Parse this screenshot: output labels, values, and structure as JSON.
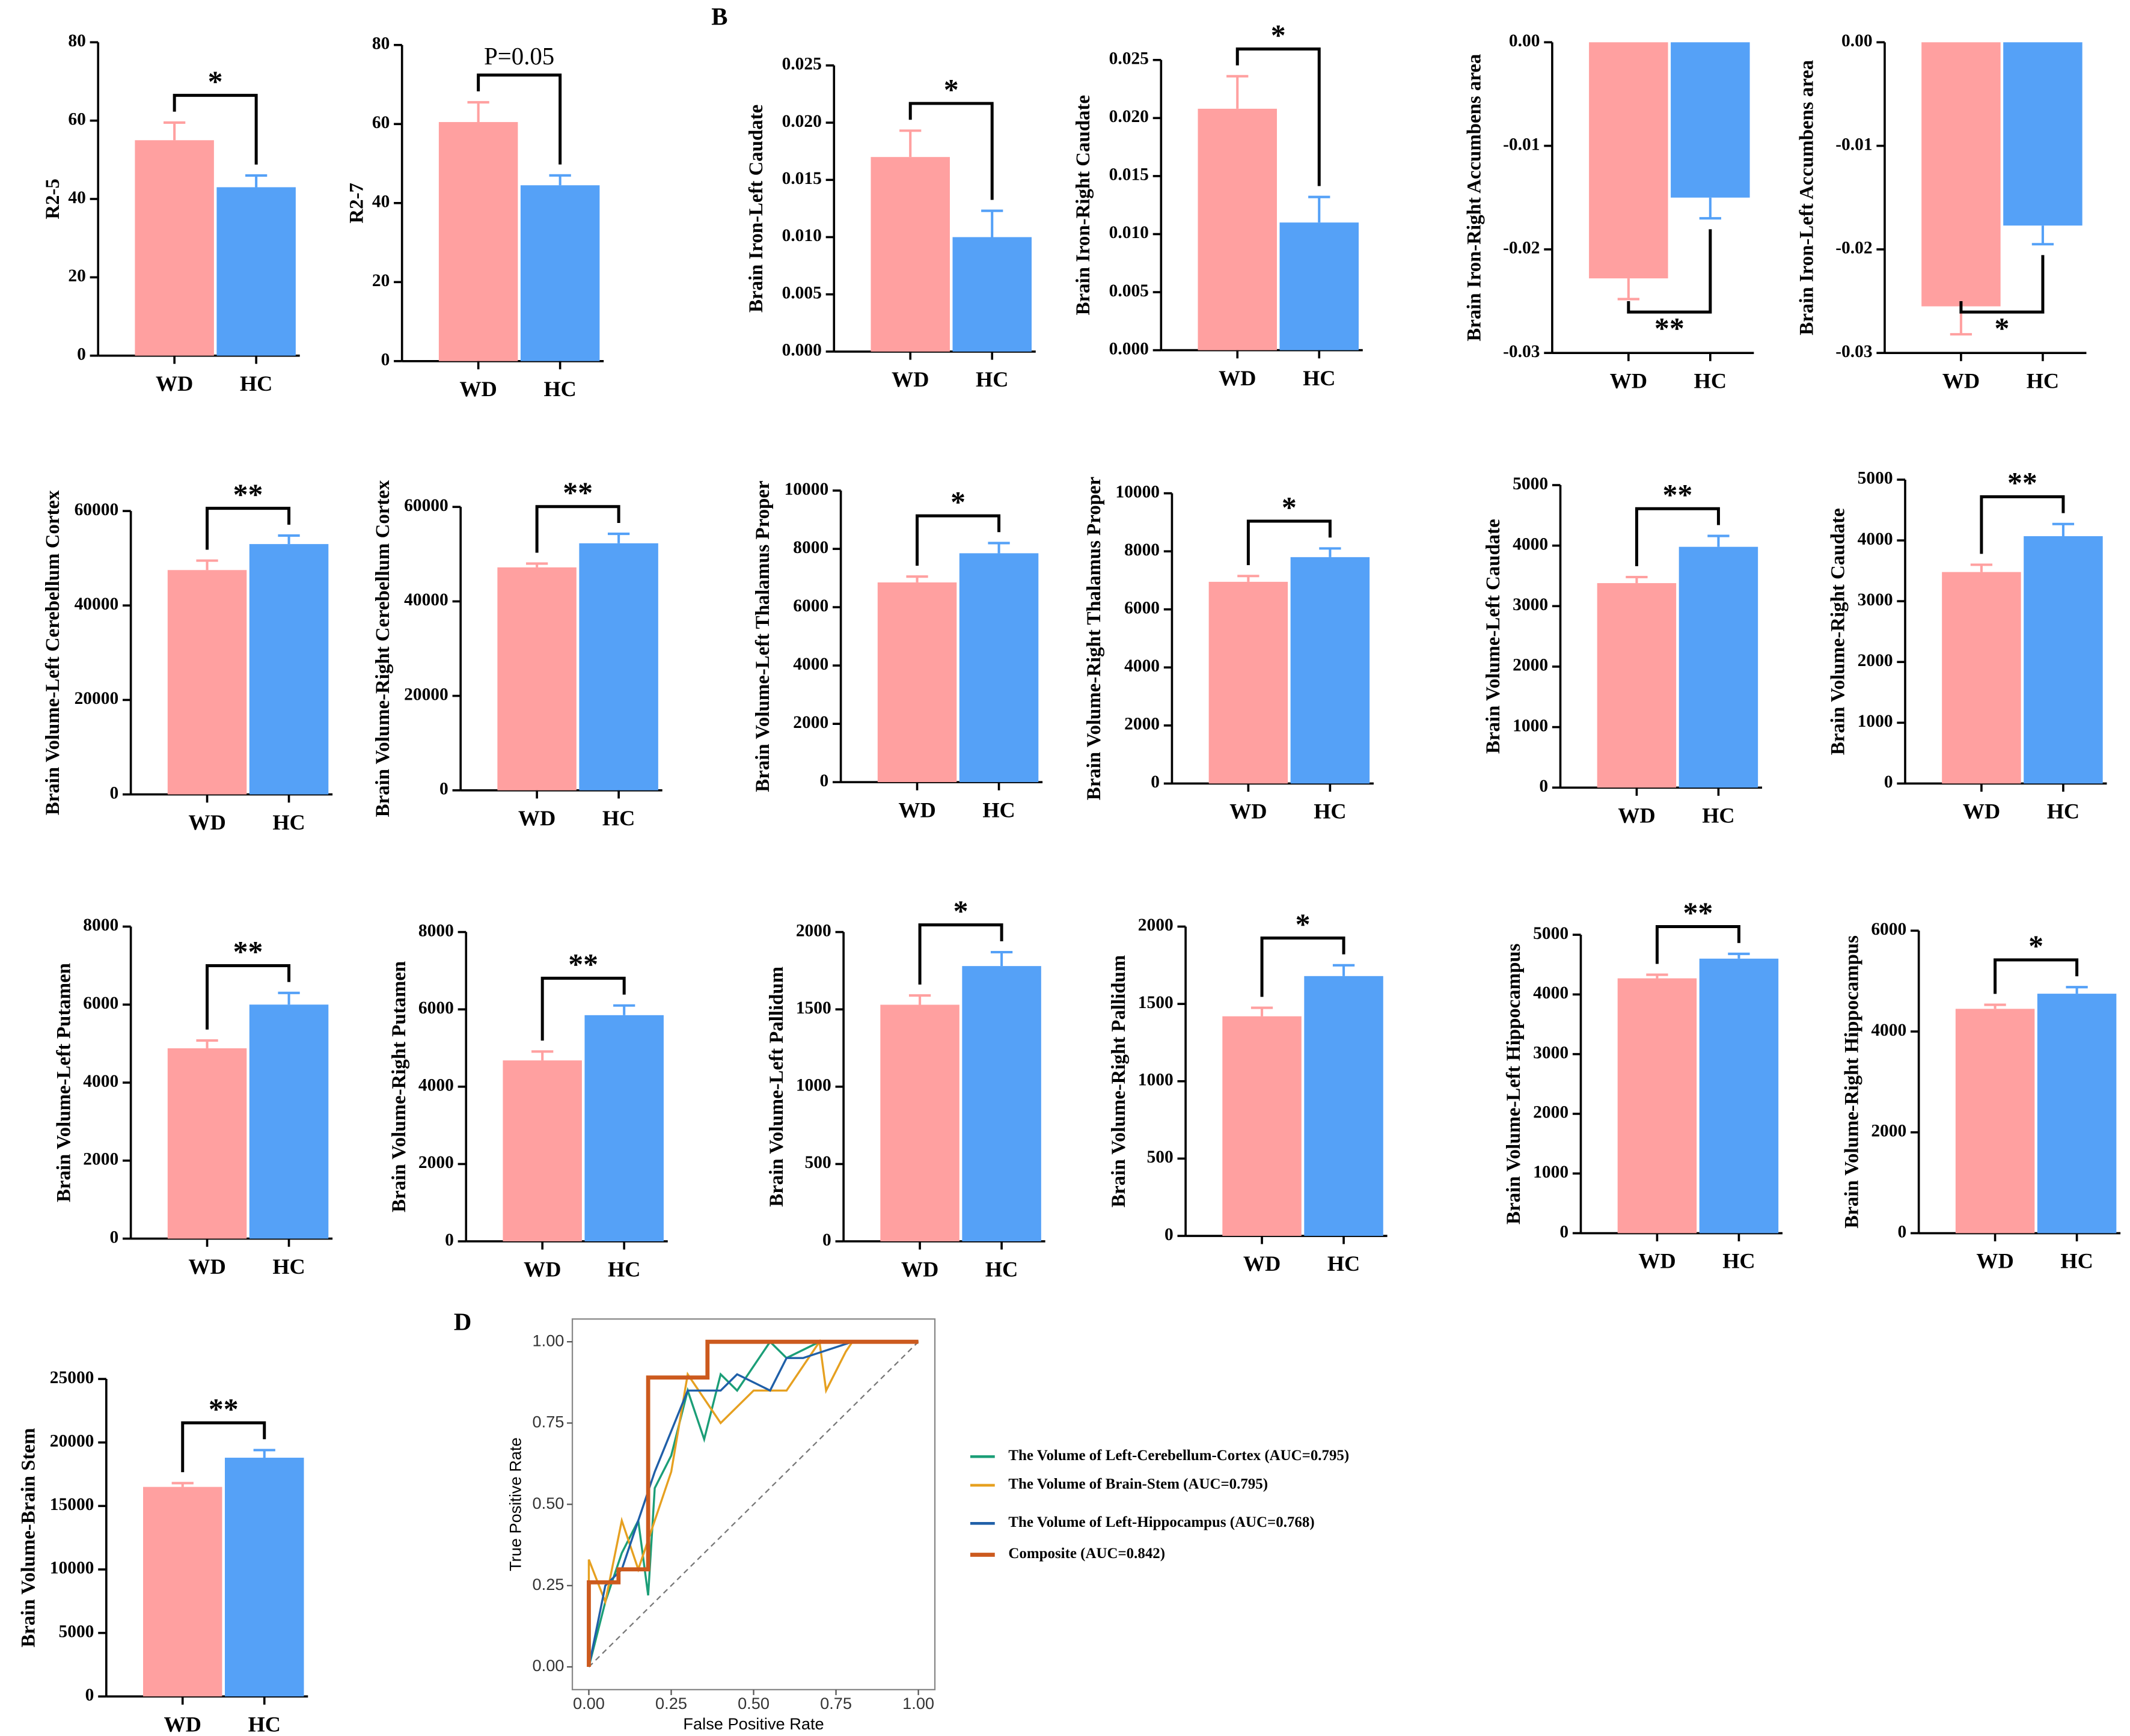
{
  "panel_labels": [
    "B",
    "D"
  ],
  "chart_data": [
    {
      "type": "bar",
      "y_label": "R2-5",
      "categories": [
        "WD",
        "HC"
      ],
      "values": [
        55,
        43
      ],
      "errors": [
        4.5,
        3
      ],
      "colors": [
        "#ffa0a0",
        "#55a1f7"
      ],
      "ylim": [
        0,
        80
      ],
      "yticks": [
        0,
        20,
        40,
        60,
        80
      ],
      "annotation": "*"
    },
    {
      "type": "bar",
      "y_label": "R2-7",
      "categories": [
        "WD",
        "HC"
      ],
      "values": [
        60.5,
        44.5
      ],
      "errors": [
        5,
        2.5
      ],
      "colors": [
        "#ffa0a0",
        "#55a1f7"
      ],
      "ylim": [
        0,
        80
      ],
      "yticks": [
        0,
        20,
        40,
        60,
        80
      ],
      "annotation": "P=0.05"
    },
    {
      "type": "bar",
      "y_label": "Brain Iron-Left Caudate",
      "categories": [
        "WD",
        "HC"
      ],
      "values": [
        0.017,
        0.01
      ],
      "errors": [
        0.0023,
        0.0023
      ],
      "colors": [
        "#ffa0a0",
        "#55a1f7"
      ],
      "ylim": [
        0,
        0.025
      ],
      "yticks": [
        {
          "value": 0,
          "label": "0.000"
        },
        {
          "value": 0.005,
          "label": "0.005"
        },
        {
          "value": 0.01,
          "label": "0.010"
        },
        {
          "value": 0.015,
          "label": "0.015"
        },
        {
          "value": 0.02,
          "label": "0.020"
        },
        {
          "value": 0.025,
          "label": "0.025"
        }
      ],
      "annotation": "*"
    },
    {
      "type": "bar",
      "y_label": "Brain Iron-Right Caudate",
      "categories": [
        "WD",
        "HC"
      ],
      "values": [
        0.0208,
        0.011
      ],
      "errors": [
        0.0028,
        0.0022
      ],
      "colors": [
        "#ffa0a0",
        "#55a1f7"
      ],
      "ylim": [
        0,
        0.025
      ],
      "yticks": [
        {
          "value": 0,
          "label": "0.000"
        },
        {
          "value": 0.005,
          "label": "0.005"
        },
        {
          "value": 0.01,
          "label": "0.010"
        },
        {
          "value": 0.015,
          "label": "0.015"
        },
        {
          "value": 0.02,
          "label": "0.020"
        },
        {
          "value": 0.025,
          "label": "0.025"
        }
      ],
      "annotation": "*"
    },
    {
      "type": "bar",
      "y_label": "Brain Iron-Right Accumbens area",
      "categories": [
        "WD",
        "HC"
      ],
      "values": [
        -0.0228,
        -0.015
      ],
      "errors": [
        0.002,
        0.002
      ],
      "colors": [
        "#ffa0a0",
        "#55a1f7"
      ],
      "ylim": [
        -0.03,
        0
      ],
      "yticks": [
        {
          "value": 0,
          "label": "0.00"
        },
        {
          "value": -0.01,
          "label": "-0.01"
        },
        {
          "value": -0.02,
          "label": "-0.02"
        },
        {
          "value": -0.03,
          "label": "-0.03"
        }
      ],
      "annotation": "**"
    },
    {
      "type": "bar",
      "y_label": "Brain Iron-Left Accumbens area",
      "categories": [
        "WD",
        "HC"
      ],
      "values": [
        -0.0255,
        -0.0177
      ],
      "errors": [
        0.0027,
        0.0018
      ],
      "colors": [
        "#ffa0a0",
        "#55a1f7"
      ],
      "ylim": [
        -0.03,
        0
      ],
      "yticks": [
        {
          "value": 0,
          "label": "0.00"
        },
        {
          "value": -0.01,
          "label": "-0.01"
        },
        {
          "value": -0.02,
          "label": "-0.02"
        },
        {
          "value": -0.03,
          "label": "-0.03"
        }
      ],
      "annotation": "*"
    },
    {
      "type": "bar",
      "y_label": "Brain Volume-Left Cerebellum Cortex",
      "categories": [
        "WD",
        "HC"
      ],
      "values": [
        47500,
        53000
      ],
      "errors": [
        2000,
        1800
      ],
      "colors": [
        "#ffa0a0",
        "#55a1f7"
      ],
      "ylim": [
        0,
        60000
      ],
      "yticks": [
        0,
        20000,
        40000,
        60000
      ],
      "annotation": "**"
    },
    {
      "type": "bar",
      "y_label": "Brain Volume-Right Cerebellum Cortex",
      "categories": [
        "WD",
        "HC"
      ],
      "values": [
        47200,
        52300
      ],
      "errors": [
        800,
        2000
      ],
      "colors": [
        "#ffa0a0",
        "#55a1f7"
      ],
      "ylim": [
        0,
        60000
      ],
      "yticks": [
        0,
        20000,
        40000,
        60000
      ],
      "annotation": "**"
    },
    {
      "type": "bar",
      "y_label": "Brain Volume-Left Thalamus Proper",
      "categories": [
        "WD",
        "HC"
      ],
      "values": [
        6850,
        7850
      ],
      "errors": [
        200,
        350
      ],
      "colors": [
        "#ffa0a0",
        "#55a1f7"
      ],
      "ylim": [
        0,
        10000
      ],
      "yticks": [
        0,
        2000,
        4000,
        6000,
        8000,
        10000
      ],
      "annotation": "*"
    },
    {
      "type": "bar",
      "y_label": "Brain Volume-Right Thalamus Proper",
      "categories": [
        "WD",
        "HC"
      ],
      "values": [
        6950,
        7800
      ],
      "errors": [
        200,
        300
      ],
      "colors": [
        "#ffa0a0",
        "#55a1f7"
      ],
      "ylim": [
        0,
        10000
      ],
      "yticks": [
        0,
        2000,
        4000,
        6000,
        8000,
        10000
      ],
      "annotation": "*"
    },
    {
      "type": "bar",
      "y_label": "Brain Volume-Left Caudate",
      "categories": [
        "WD",
        "HC"
      ],
      "values": [
        3380,
        3980
      ],
      "errors": [
        100,
        180
      ],
      "colors": [
        "#ffa0a0",
        "#55a1f7"
      ],
      "ylim": [
        0,
        5000
      ],
      "yticks": [
        0,
        1000,
        2000,
        3000,
        4000,
        5000
      ],
      "annotation": "**"
    },
    {
      "type": "bar",
      "y_label": "Brain Volume-Right Caudate",
      "categories": [
        "WD",
        "HC"
      ],
      "values": [
        3480,
        4070
      ],
      "errors": [
        120,
        200
      ],
      "colors": [
        "#ffa0a0",
        "#55a1f7"
      ],
      "ylim": [
        0,
        5000
      ],
      "yticks": [
        0,
        1000,
        2000,
        3000,
        4000,
        5000
      ],
      "annotation": "**"
    },
    {
      "type": "bar",
      "y_label": "Brain Volume-Left Putamen",
      "categories": [
        "WD",
        "HC"
      ],
      "values": [
        4880,
        6000
      ],
      "errors": [
        200,
        300
      ],
      "colors": [
        "#ffa0a0",
        "#55a1f7"
      ],
      "ylim": [
        0,
        8000
      ],
      "yticks": [
        0,
        2000,
        4000,
        6000,
        8000
      ],
      "annotation": "**"
    },
    {
      "type": "bar",
      "y_label": "Brain Volume-Right Putamen",
      "categories": [
        "WD",
        "HC"
      ],
      "values": [
        4680,
        5850
      ],
      "errors": [
        230,
        250
      ],
      "colors": [
        "#ffa0a0",
        "#55a1f7"
      ],
      "ylim": [
        0,
        8000
      ],
      "yticks": [
        0,
        2000,
        4000,
        6000,
        8000
      ],
      "annotation": "**"
    },
    {
      "type": "bar",
      "y_label": "Brain Volume-Left Pallidum",
      "categories": [
        "WD",
        "HC"
      ],
      "values": [
        1530,
        1780
      ],
      "errors": [
        60,
        90
      ],
      "colors": [
        "#ffa0a0",
        "#55a1f7"
      ],
      "ylim": [
        0,
        2000
      ],
      "yticks": [
        0,
        500,
        1000,
        1500,
        2000
      ],
      "annotation": "*"
    },
    {
      "type": "bar",
      "y_label": "Brain Volume-Right Pallidum",
      "categories": [
        "WD",
        "HC"
      ],
      "values": [
        1420,
        1680
      ],
      "errors": [
        55,
        70
      ],
      "colors": [
        "#ffa0a0",
        "#55a1f7"
      ],
      "ylim": [
        0,
        2000
      ],
      "yticks": [
        0,
        500,
        1000,
        1500,
        2000
      ],
      "annotation": "*"
    },
    {
      "type": "bar",
      "y_label": "Brain Volume-Left Hippocampus",
      "categories": [
        "WD",
        "HC"
      ],
      "values": [
        4270,
        4600
      ],
      "errors": [
        60,
        80
      ],
      "colors": [
        "#ffa0a0",
        "#55a1f7"
      ],
      "ylim": [
        0,
        5000
      ],
      "yticks": [
        0,
        1000,
        2000,
        3000,
        4000,
        5000
      ],
      "annotation": "**"
    },
    {
      "type": "bar",
      "y_label": "Brain Volume-Right Hippocampus",
      "categories": [
        "WD",
        "HC"
      ],
      "values": [
        4450,
        4750
      ],
      "errors": [
        80,
        130
      ],
      "colors": [
        "#ffa0a0",
        "#55a1f7"
      ],
      "ylim": [
        0,
        6000
      ],
      "yticks": [
        0,
        2000,
        4000,
        6000
      ],
      "annotation": "*"
    },
    {
      "type": "bar",
      "y_label": "Brain Volume-Brain Stem",
      "categories": [
        "WD",
        "HC"
      ],
      "values": [
        16500,
        18800
      ],
      "errors": [
        300,
        600
      ],
      "colors": [
        "#ffa0a0",
        "#55a1f7"
      ],
      "ylim": [
        0,
        25000
      ],
      "yticks": [
        0,
        5000,
        10000,
        15000,
        20000,
        25000
      ],
      "annotation": "**"
    },
    {
      "type": "line",
      "x_label": "False Positive Rate",
      "y_label": "True Positive Rate",
      "xlim": [
        -0.05,
        1.05
      ],
      "ylim": [
        -0.07,
        1.07
      ],
      "xticks": [
        {
          "value": 0,
          "label": "0.00"
        },
        {
          "value": 0.25,
          "label": "0.25"
        },
        {
          "value": 0.5,
          "label": "0.50"
        },
        {
          "value": 0.75,
          "label": "0.75"
        },
        {
          "value": 1,
          "label": "1.00"
        }
      ],
      "yticks": [
        {
          "value": 0,
          "label": "0.00"
        },
        {
          "value": 0.25,
          "label": "0.25"
        },
        {
          "value": 0.5,
          "label": "0.50"
        },
        {
          "value": 0.75,
          "label": "0.75"
        },
        {
          "value": 1,
          "label": "1.00"
        }
      ],
      "series": [
        {
          "name": "The Volume of Left-Cerebellum-Cortex (AUC=0.795)",
          "color": "#1b9e77",
          "x": [
            0,
            0.05,
            0.1,
            0.15,
            0.18,
            0.2,
            0.25,
            0.3,
            0.35,
            0.4,
            0.45,
            0.55,
            0.6,
            0.7,
            0.8,
            1
          ],
          "y": [
            0,
            0.2,
            0.35,
            0.45,
            0.22,
            0.55,
            0.65,
            0.85,
            0.7,
            0.9,
            0.85,
            1,
            0.95,
            1,
            1,
            1
          ]
        },
        {
          "name": "The Volume of Brain-Stem (AUC=0.795)",
          "color": "#e6a020",
          "x": [
            0,
            0,
            0.05,
            0.1,
            0.15,
            0.25,
            0.3,
            0.4,
            0.5,
            0.6,
            0.7,
            0.72,
            0.78,
            0.8,
            1
          ],
          "y": [
            0,
            0.33,
            0.2,
            0.45,
            0.3,
            0.6,
            0.9,
            0.75,
            0.85,
            0.85,
            1,
            0.85,
            0.97,
            1,
            1
          ]
        },
        {
          "name": "The Volume of Left-Hippocampus  (AUC=0.768)",
          "color": "#1f5fa8",
          "x": [
            0,
            0.05,
            0.1,
            0.2,
            0.3,
            0.4,
            0.45,
            0.55,
            0.6,
            0.65,
            0.8,
            1
          ],
          "y": [
            0,
            0.25,
            0.3,
            0.6,
            0.85,
            0.85,
            0.9,
            0.85,
            0.95,
            0.95,
            1,
            1
          ]
        },
        {
          "name": "Composite (AUC=0.842)",
          "color": "#cc5a1e",
          "x": [
            0,
            0,
            0.09,
            0.09,
            0.18,
            0.18,
            0.36,
            0.36,
            1
          ],
          "y": [
            0,
            0.26,
            0.26,
            0.3,
            0.3,
            0.89,
            0.89,
            1,
            1
          ]
        }
      ]
    }
  ]
}
